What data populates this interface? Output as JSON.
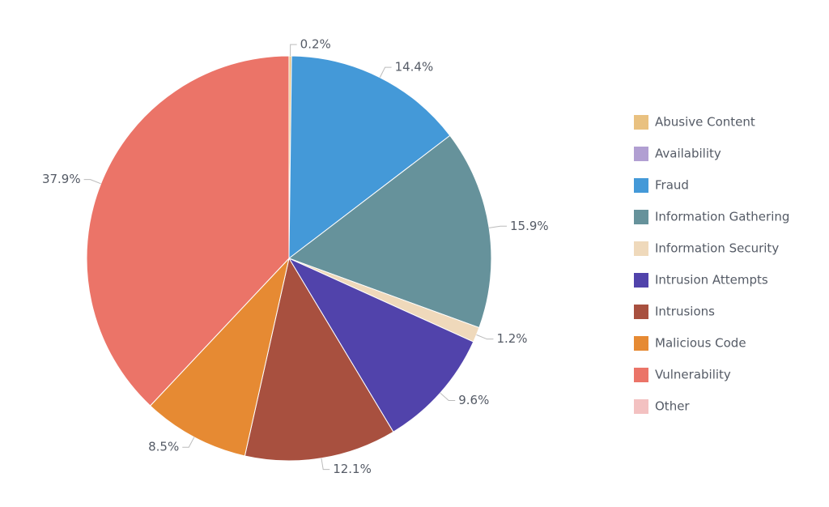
{
  "chart_data": {
    "type": "pie",
    "categories": [
      "Abusive Content",
      "Availability",
      "Fraud",
      "Information Gathering",
      "Information Security",
      "Intrusion Attempts",
      "Intrusions",
      "Malicious Code",
      "Vulnerability",
      "Other"
    ],
    "values": [
      0.2,
      0,
      14.4,
      15.9,
      1.2,
      9.6,
      12.1,
      8.5,
      37.9,
      0
    ],
    "value_labels": [
      "0.2%",
      null,
      "14.4%",
      "15.9%",
      "1.2%",
      "9.6%",
      "12.1%",
      "8.5%",
      "37.9%",
      null
    ],
    "colors": [
      "#e9c180",
      "#b19fd2",
      "#4499d8",
      "#66929b",
      "#efd9bb",
      "#5143ab",
      "#a8503f",
      "#e68a33",
      "#eb7468",
      "#f3c1c1"
    ],
    "legend": "right"
  }
}
